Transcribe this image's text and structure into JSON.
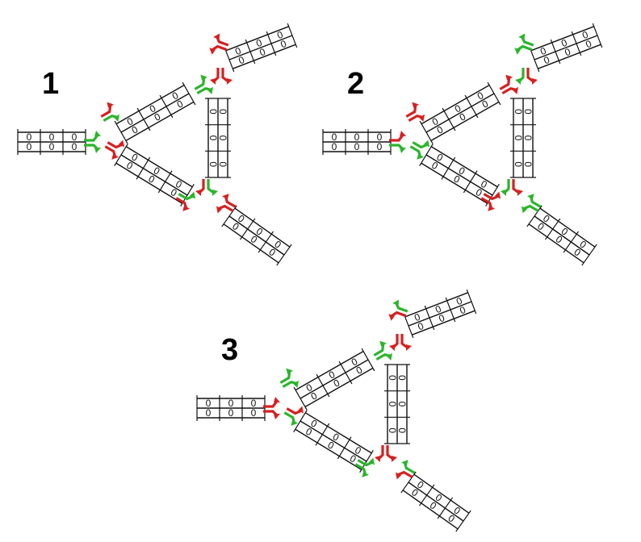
{
  "title": "",
  "cell_value": "0",
  "colors": {
    "green": "#2bb52b",
    "red": "#d62020",
    "line": "#111111"
  },
  "panels": [
    {
      "label": "1",
      "signals": {
        "west": [
          "green",
          "green"
        ],
        "node_left_upper": [
          "red",
          "green"
        ],
        "node_left_lower": [
          "red",
          "red"
        ],
        "node_top": [
          "green",
          "green"
        ],
        "node_top_in": [
          "red",
          "red"
        ],
        "node_bottom": [
          "green",
          "red"
        ],
        "node_bottom_out": [
          "green",
          "red"
        ],
        "far_ne": [
          "red",
          "red"
        ],
        "far_se": [
          "red",
          "red"
        ]
      }
    },
    {
      "label": "2",
      "signals": {
        "west": [
          "red",
          "green"
        ],
        "node_left_upper": [
          "red",
          "red"
        ],
        "node_left_lower": [
          "green",
          "green"
        ],
        "node_top": [
          "red",
          "red"
        ],
        "node_top_in": [
          "red",
          "green"
        ],
        "node_bottom": [
          "red",
          "red"
        ],
        "node_bottom_out": [
          "red",
          "green"
        ],
        "far_ne": [
          "green",
          "green"
        ],
        "far_se": [
          "green",
          "green"
        ]
      }
    },
    {
      "label": "3",
      "signals": {
        "west": [
          "red",
          "red"
        ],
        "node_left_upper": [
          "green",
          "green"
        ],
        "node_left_lower": [
          "red",
          "green"
        ],
        "node_top": [
          "green",
          "green"
        ],
        "node_top_in": [
          "red",
          "red"
        ],
        "node_bottom": [
          "green",
          "green"
        ],
        "node_bottom_out": [
          "red",
          "red"
        ],
        "far_ne": [
          "red",
          "green"
        ],
        "far_se": [
          "red",
          "green"
        ]
      }
    }
  ]
}
